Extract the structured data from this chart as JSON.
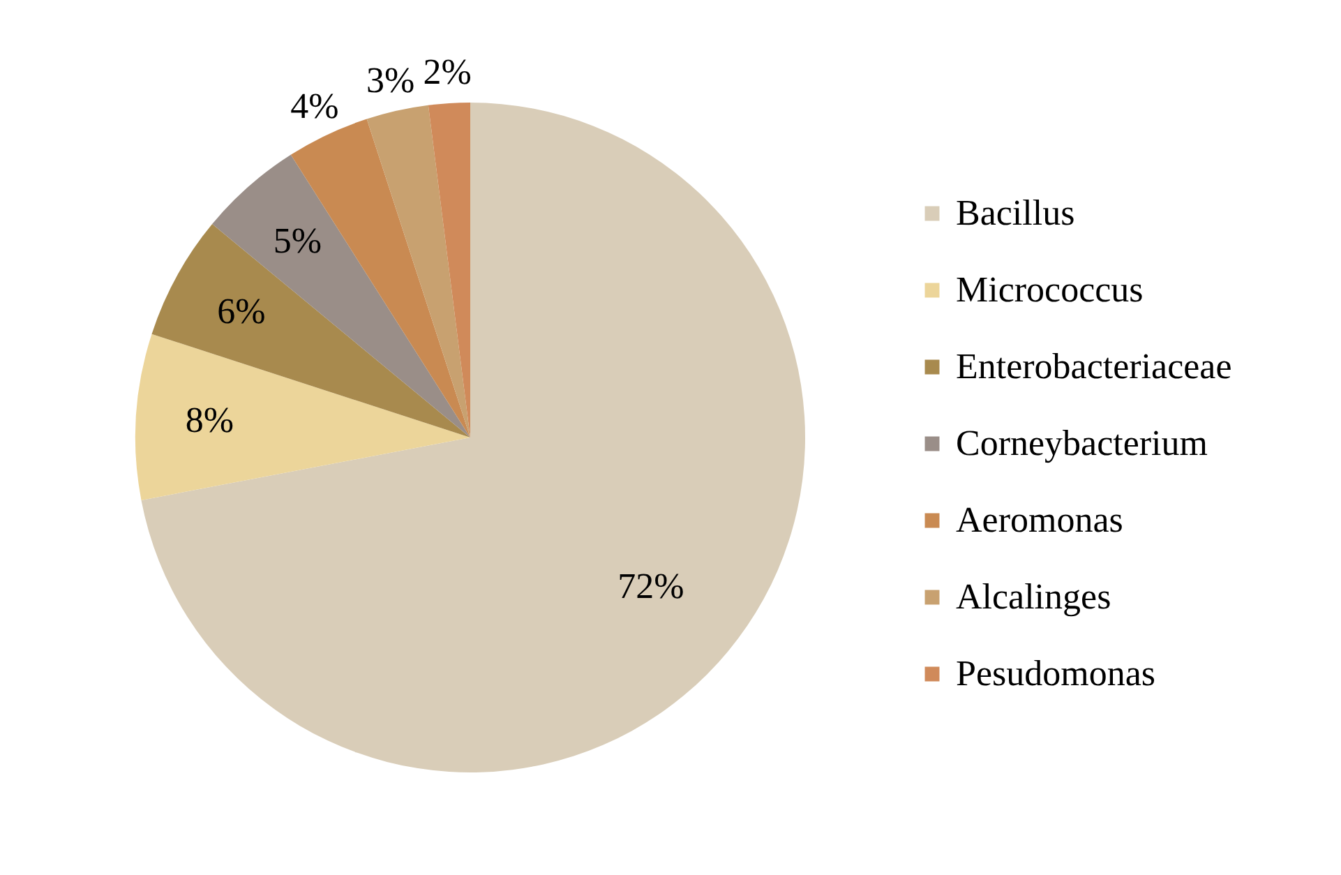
{
  "chart_data": {
    "type": "pie",
    "categories": [
      "Bacillus",
      "Micrococcus",
      "Enterobacteriaceae",
      "Corneybacterium",
      "Aeromonas",
      "Alcalinges",
      "Pesudomonas"
    ],
    "values": [
      72,
      8,
      6,
      5,
      4,
      3,
      2
    ],
    "value_labels": [
      "72%",
      "8%",
      "6%",
      "5%",
      "4%",
      "3%",
      "2%"
    ],
    "colors": [
      "#d9cdb8",
      "#ecd59a",
      "#a88a4e",
      "#9a8e88",
      "#c98a52",
      "#c8a170",
      "#d08a5a"
    ],
    "legend": "right"
  }
}
